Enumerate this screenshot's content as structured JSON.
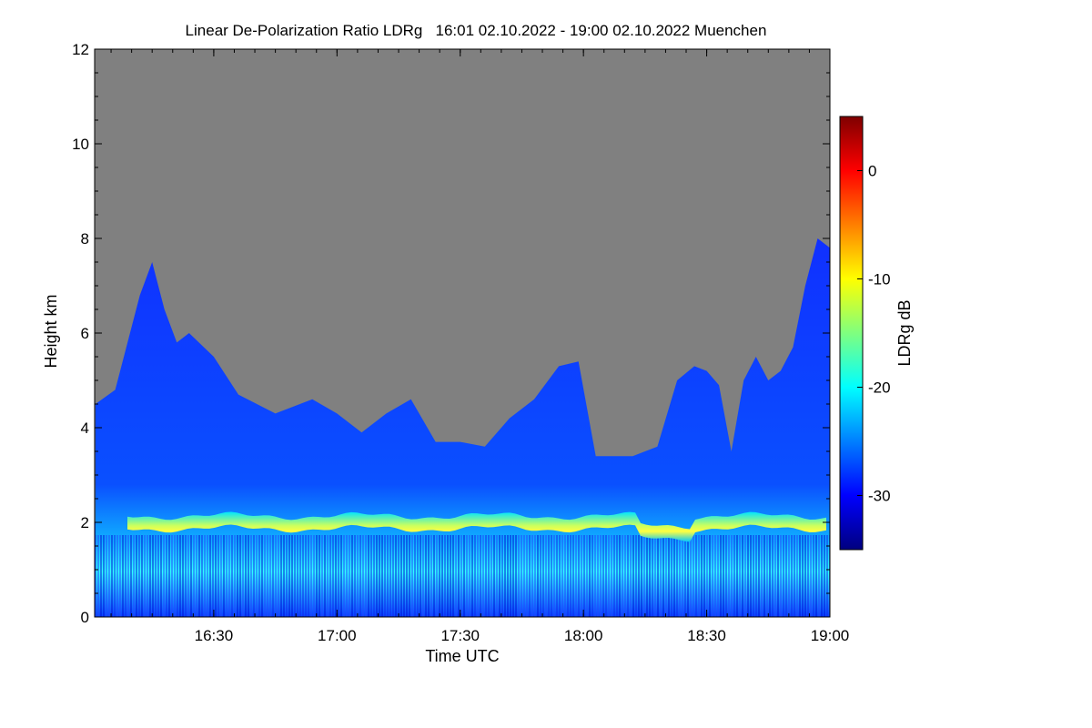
{
  "chart_data": {
    "type": "heatmap",
    "title": "Linear De-Polarization Ratio LDRg   16:01 02.10.2022 - 19:00 02.10.2022 Muenchen",
    "xlabel": "Time UTC",
    "ylabel": "Height km",
    "x_range_utc": [
      "16:01",
      "19:00"
    ],
    "ylim": [
      0,
      12
    ],
    "x_ticks": [
      "16:30",
      "17:00",
      "17:30",
      "18:00",
      "18:30",
      "19:00"
    ],
    "x_tick_hours": [
      16.5,
      17.0,
      17.5,
      18.0,
      18.5,
      19.0
    ],
    "y_ticks": [
      0,
      2,
      4,
      6,
      8,
      10,
      12
    ],
    "no_data_color": "#808080",
    "colorbar": {
      "label": "LDRg dB",
      "range": [
        -35,
        5
      ],
      "ticks": [
        0,
        -10,
        -20,
        -30
      ],
      "colors": [
        "#00007f",
        "#0000ff",
        "#007fff",
        "#00ffff",
        "#7fff7f",
        "#ffff00",
        "#ff7f00",
        "#ff0000",
        "#7f0000"
      ]
    },
    "features": {
      "melting_layer_height_km": 2.0,
      "melting_layer_ldr_db": -14,
      "cloud_top_profile": {
        "time_hours": [
          16.02,
          16.1,
          16.2,
          16.25,
          16.3,
          16.35,
          16.4,
          16.5,
          16.6,
          16.75,
          16.9,
          17.0,
          17.1,
          17.2,
          17.3,
          17.4,
          17.5,
          17.6,
          17.7,
          17.8,
          17.9,
          17.98,
          18.05,
          18.1,
          18.2,
          18.3,
          18.38,
          18.45,
          18.5,
          18.55,
          18.6,
          18.65,
          18.7,
          18.75,
          18.8,
          18.85,
          18.9,
          18.95,
          19.0
        ],
        "height_km": [
          4.5,
          4.8,
          6.8,
          7.5,
          6.5,
          5.8,
          6.0,
          5.5,
          4.7,
          4.3,
          4.6,
          4.3,
          3.9,
          4.3,
          4.6,
          3.7,
          3.7,
          3.6,
          4.2,
          4.6,
          5.3,
          5.4,
          3.4,
          3.4,
          3.4,
          3.6,
          5.0,
          5.3,
          5.2,
          4.9,
          3.5,
          5.0,
          5.5,
          5.0,
          5.2,
          5.7,
          7.0,
          8.0,
          7.8
        ]
      }
    }
  }
}
